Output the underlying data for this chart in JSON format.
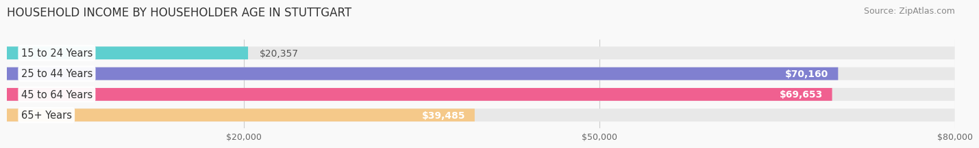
{
  "title": "HOUSEHOLD INCOME BY HOUSEHOLDER AGE IN STUTTGART",
  "source": "Source: ZipAtlas.com",
  "categories": [
    "15 to 24 Years",
    "25 to 44 Years",
    "45 to 64 Years",
    "65+ Years"
  ],
  "values": [
    20357,
    70160,
    69653,
    39485
  ],
  "bar_colors": [
    "#5ecfcf",
    "#8080d0",
    "#f06090",
    "#f5c98a"
  ],
  "bar_bg_color": "#e8e8e8",
  "value_labels": [
    "$20,357",
    "$70,160",
    "$69,653",
    "$39,485"
  ],
  "xlim": [
    0,
    80000
  ],
  "xticks": [
    20000,
    50000,
    80000
  ],
  "xticklabels": [
    "$20,000",
    "$50,000",
    "$80,000"
  ],
  "background_color": "#f9f9f9",
  "bar_height": 0.62,
  "label_fontsize": 10.5,
  "value_fontsize": 10,
  "title_fontsize": 12,
  "source_fontsize": 9
}
